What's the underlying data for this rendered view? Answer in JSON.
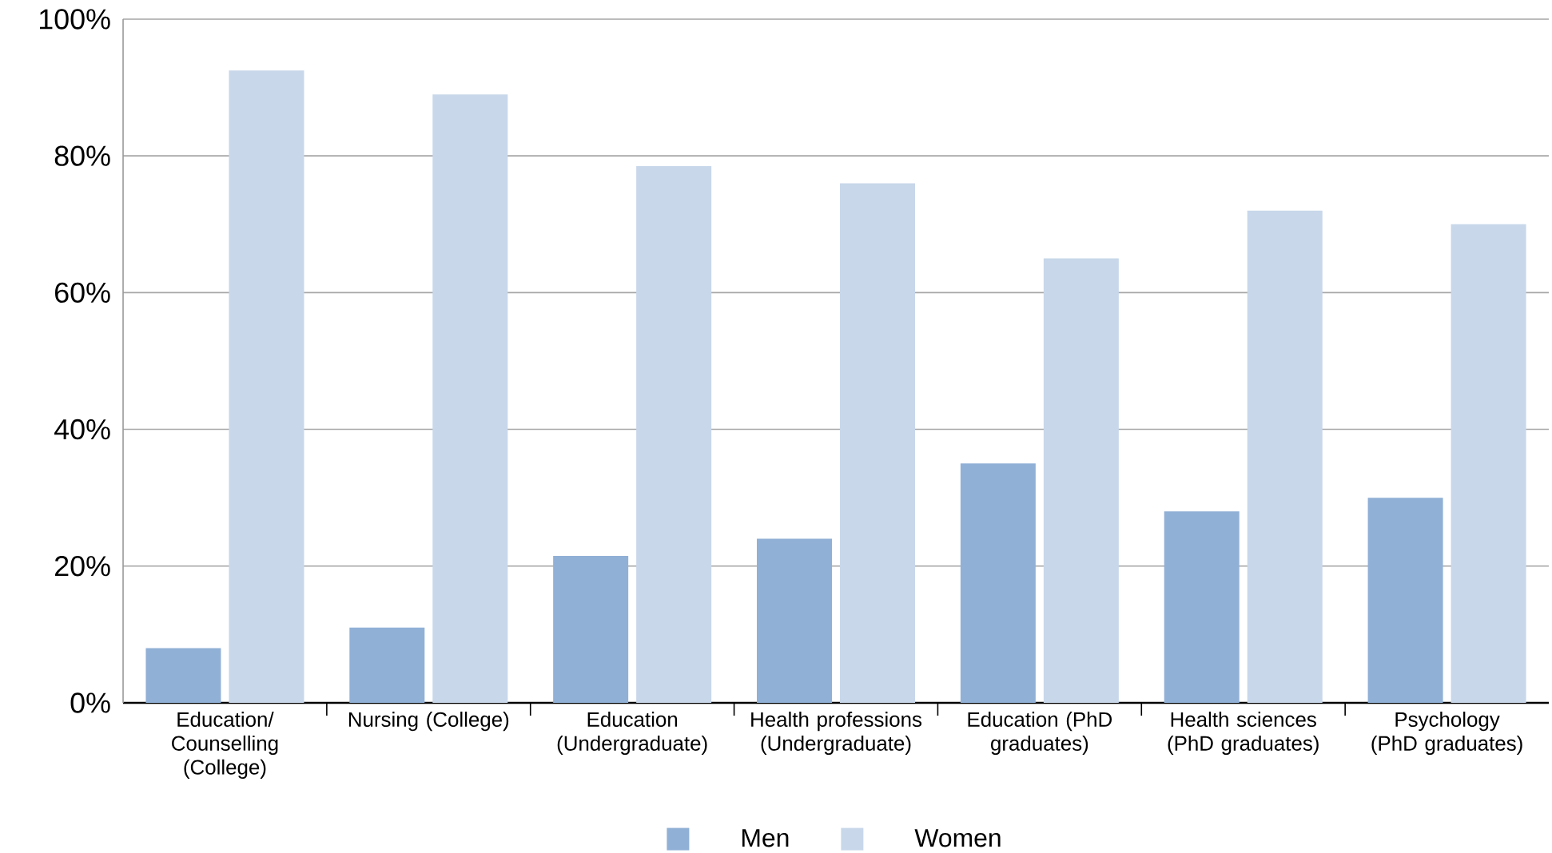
{
  "chart_data": {
    "type": "bar",
    "categories": [
      "Education/ Counselling (College)",
      "Nursing (College)",
      "Education (Undergraduate)",
      "Health professions (Undergraduate)",
      "Education (PhD graduates)",
      "Health sciences (PhD graduates)",
      "Psychology (PhD graduates)"
    ],
    "series": [
      {
        "name": "Men",
        "color": "#91b0d6",
        "values": [
          8,
          11,
          21.5,
          24,
          35,
          28,
          30
        ]
      },
      {
        "name": "Women",
        "color": "#c8d7ea",
        "values": [
          92.5,
          89,
          78.5,
          76,
          65,
          72,
          70
        ]
      }
    ],
    "ylim": [
      0,
      100
    ],
    "yticks": [
      {
        "value": 0,
        "label": "0%"
      },
      {
        "value": 20,
        "label": "20%"
      },
      {
        "value": 40,
        "label": "40%"
      },
      {
        "value": 60,
        "label": "60%"
      },
      {
        "value": 80,
        "label": "80%"
      },
      {
        "value": 100,
        "label": "100%"
      }
    ],
    "grid": "y",
    "legend": "bottom"
  }
}
